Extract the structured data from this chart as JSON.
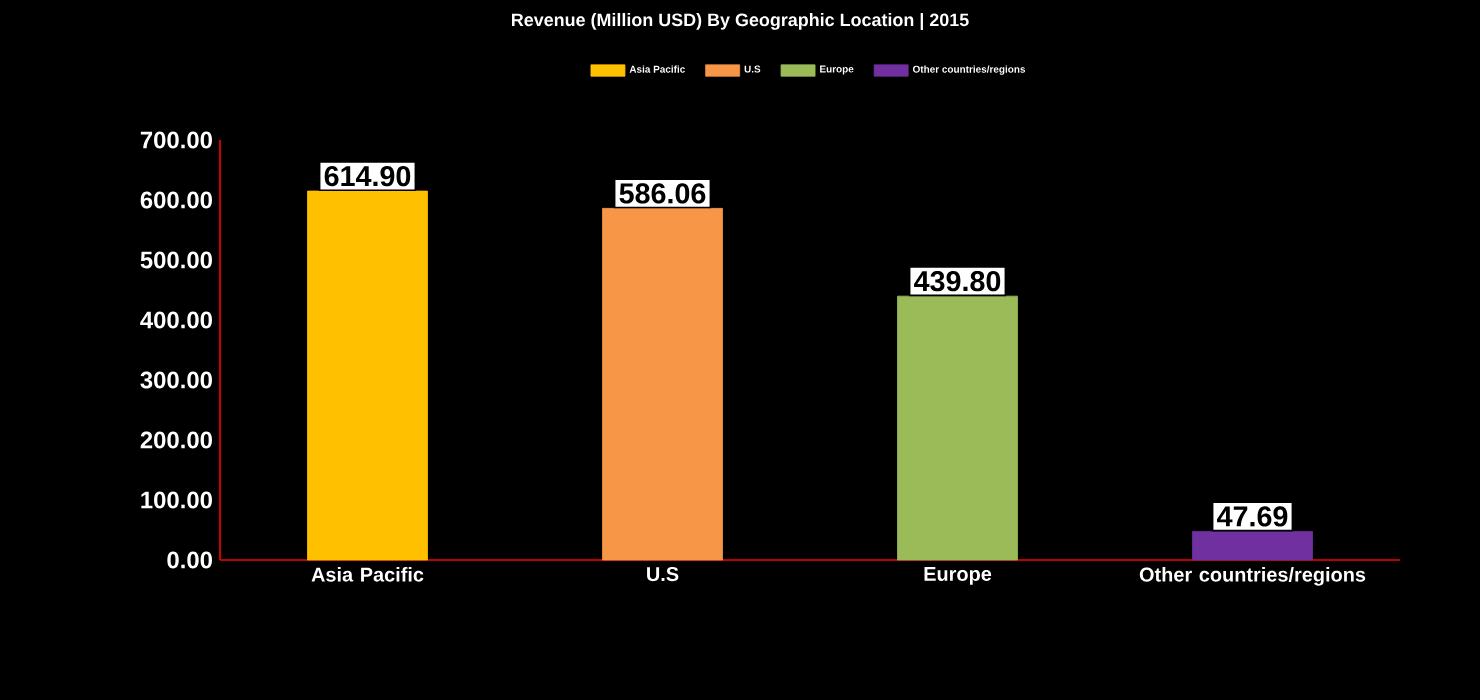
{
  "chart_data": {
    "type": "bar",
    "title": "Revenue (Million USD) By Geographic Location | 2015",
    "categories": [
      "Asia Pacific",
      "U.S",
      "Europe",
      "Other countries/regions"
    ],
    "series": [
      {
        "name": "Asia Pacific",
        "color": "#ffc000",
        "values": [
          614.9,
          null,
          null,
          null
        ],
        "value_labels": [
          "614.90",
          null,
          null,
          null
        ]
      },
      {
        "name": "U.S",
        "color": "#f79646",
        "values": [
          null,
          586.06,
          null,
          null
        ],
        "value_labels": [
          null,
          "586.06",
          null,
          null
        ]
      },
      {
        "name": "Europe",
        "color": "#9bbb59",
        "values": [
          null,
          null,
          439.8,
          null
        ],
        "value_labels": [
          null,
          null,
          "439.80",
          null
        ]
      },
      {
        "name": "Other countries/regions",
        "color": "#7030a0",
        "values": [
          null,
          null,
          null,
          47.69
        ],
        "value_labels": [
          null,
          null,
          null,
          "47.69"
        ]
      }
    ],
    "ylim": [
      0,
      700
    ],
    "yticks": [
      {
        "value": 0,
        "label": "0.00"
      },
      {
        "value": 100,
        "label": "100.00"
      },
      {
        "value": 200,
        "label": "200.00"
      },
      {
        "value": 300,
        "label": "300.00"
      },
      {
        "value": 400,
        "label": "400.00"
      },
      {
        "value": 500,
        "label": "500.00"
      },
      {
        "value": 600,
        "label": "600.00"
      },
      {
        "value": 700,
        "label": "700.00"
      }
    ],
    "legend": "top",
    "grid": false
  }
}
